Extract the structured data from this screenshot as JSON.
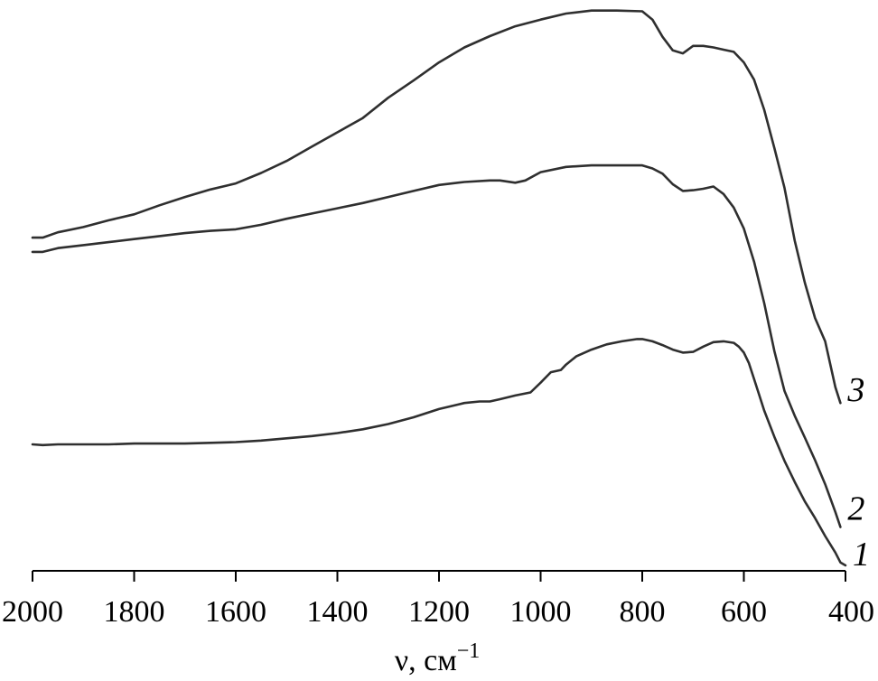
{
  "chart_data": {
    "type": "line",
    "title": "",
    "xlabel_main": "ν, см",
    "xlabel_sup": "−1",
    "ylabel": "",
    "xlim": [
      2000,
      400
    ],
    "xticks": [
      "2000",
      "1800",
      "1600",
      "1400",
      "1200",
      "1000",
      "800",
      "600",
      "400"
    ],
    "y_axis_shown": false,
    "grid": false,
    "series": [
      {
        "name": "1",
        "x": [
          2000,
          1980,
          1950,
          1900,
          1850,
          1800,
          1750,
          1700,
          1650,
          1600,
          1550,
          1500,
          1450,
          1400,
          1350,
          1300,
          1250,
          1200,
          1150,
          1120,
          1100,
          1080,
          1050,
          1020,
          1000,
          980,
          960,
          950,
          930,
          900,
          870,
          840,
          810,
          800,
          780,
          760,
          740,
          720,
          700,
          680,
          660,
          640,
          620,
          610,
          600,
          590,
          580,
          570,
          560,
          540,
          520,
          500,
          480,
          460,
          440,
          420,
          410,
          400
        ],
        "y": [
          16.1,
          16.0,
          16.1,
          16.1,
          16.1,
          16.2,
          16.2,
          16.2,
          16.3,
          16.4,
          16.6,
          16.9,
          17.2,
          17.6,
          18.1,
          18.8,
          19.7,
          20.8,
          21.6,
          21.8,
          21.8,
          22.1,
          22.6,
          23.0,
          24.3,
          25.7,
          26.0,
          26.7,
          27.8,
          28.7,
          29.4,
          29.8,
          30.1,
          30.1,
          29.8,
          29.3,
          28.7,
          28.3,
          28.4,
          29.1,
          29.7,
          29.8,
          29.6,
          29.1,
          28.3,
          26.9,
          24.8,
          22.7,
          20.6,
          17.1,
          13.9,
          11.1,
          8.5,
          6.3,
          3.9,
          1.7,
          0.4,
          0.0
        ]
      },
      {
        "name": "2",
        "x": [
          2000,
          1980,
          1950,
          1900,
          1850,
          1800,
          1750,
          1700,
          1650,
          1600,
          1550,
          1500,
          1450,
          1400,
          1350,
          1300,
          1250,
          1200,
          1150,
          1100,
          1080,
          1050,
          1030,
          1000,
          950,
          900,
          850,
          800,
          780,
          760,
          740,
          720,
          700,
          680,
          660,
          640,
          620,
          600,
          580,
          560,
          540,
          520,
          500,
          480,
          460,
          440,
          420,
          410
        ],
        "y": [
          41.7,
          41.7,
          42.2,
          42.6,
          43.0,
          43.4,
          43.8,
          44.2,
          44.5,
          44.7,
          45.3,
          46.1,
          46.8,
          47.5,
          48.2,
          49.0,
          49.8,
          50.6,
          51.0,
          51.2,
          51.2,
          50.9,
          51.2,
          52.3,
          53.0,
          53.2,
          53.2,
          53.2,
          52.8,
          52.1,
          50.7,
          49.8,
          49.9,
          50.1,
          50.4,
          49.4,
          47.6,
          44.8,
          40.4,
          34.9,
          28.5,
          23.2,
          19.9,
          17.0,
          14.0,
          10.8,
          7.1,
          5.1
        ]
      },
      {
        "name": "3",
        "x": [
          2000,
          1980,
          1950,
          1900,
          1850,
          1800,
          1750,
          1700,
          1650,
          1600,
          1550,
          1500,
          1450,
          1400,
          1350,
          1300,
          1250,
          1200,
          1150,
          1100,
          1050,
          1000,
          950,
          900,
          850,
          800,
          780,
          760,
          740,
          720,
          700,
          680,
          660,
          640,
          620,
          600,
          580,
          560,
          540,
          520,
          500,
          480,
          460,
          440,
          420,
          410
        ],
        "y": [
          43.6,
          43.6,
          44.3,
          45.0,
          45.9,
          46.7,
          47.9,
          49.0,
          50.0,
          50.8,
          52.2,
          53.8,
          55.7,
          57.6,
          59.5,
          62.2,
          64.5,
          66.9,
          68.9,
          70.4,
          71.7,
          72.6,
          73.4,
          73.8,
          73.8,
          73.7,
          72.6,
          70.3,
          68.5,
          68.1,
          69.1,
          69.1,
          68.9,
          68.6,
          68.3,
          66.9,
          64.6,
          60.6,
          55.5,
          50.2,
          43.2,
          37.6,
          32.9,
          29.8,
          23.7,
          21.6
        ]
      }
    ]
  }
}
